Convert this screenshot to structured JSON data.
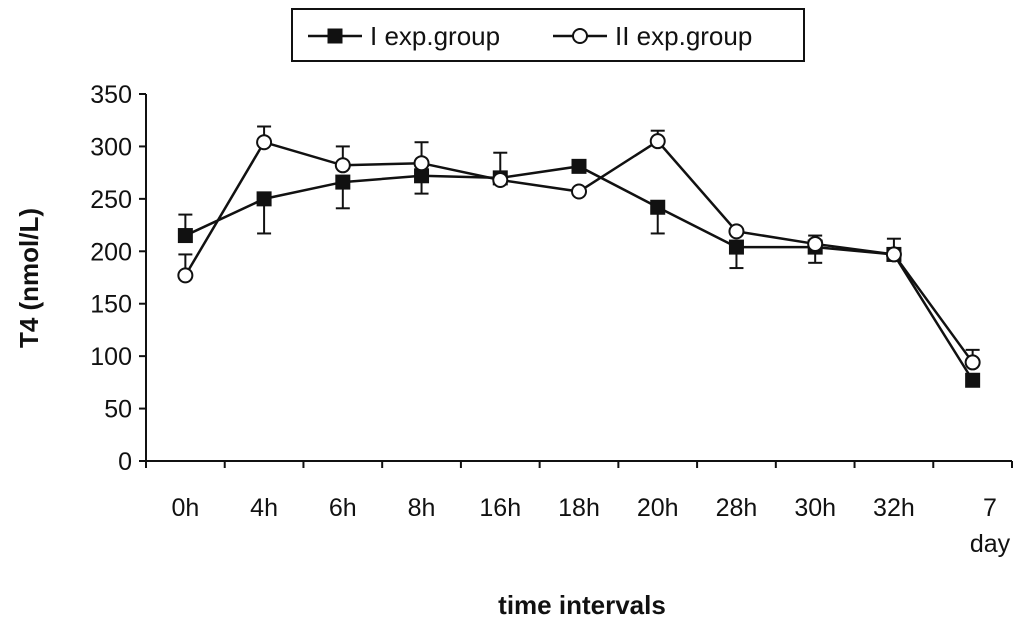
{
  "chart_data": {
    "type": "line",
    "title": "",
    "xlabel": "time intervals",
    "ylabel": "T4 (nmol/L)",
    "ylim": [
      0,
      350
    ],
    "yticks": [
      "0",
      "50",
      "100",
      "150",
      "200",
      "250",
      "300",
      "350"
    ],
    "categories": [
      "0h",
      "4h",
      "6h",
      "8h",
      "16h",
      "18h",
      "20h",
      "28h",
      "30h",
      "32h",
      "7 day"
    ],
    "category_label_lines": [
      [
        "0h"
      ],
      [
        "4h"
      ],
      [
        "6h"
      ],
      [
        "8h"
      ],
      [
        "16h"
      ],
      [
        "18h"
      ],
      [
        "20h"
      ],
      [
        "28h"
      ],
      [
        "30h"
      ],
      [
        "32h"
      ],
      [
        "7",
        "day"
      ]
    ],
    "grid": false,
    "legend_position": "top-center",
    "series": [
      {
        "name": "I exp.group",
        "marker": "filled-square",
        "color": "#111111",
        "values": [
          215,
          250,
          266,
          272,
          270,
          281,
          242,
          204,
          204,
          197,
          77
        ],
        "errors": [
          20,
          33,
          25,
          17,
          24,
          0,
          25,
          20,
          15,
          0,
          0
        ]
      },
      {
        "name": "II exp.group",
        "marker": "open-circle",
        "color": "#111111",
        "values": [
          177,
          304,
          282,
          284,
          268,
          257,
          305,
          219,
          207,
          197,
          94
        ],
        "errors": [
          20,
          15,
          18,
          20,
          0,
          0,
          10,
          0,
          8,
          15,
          12
        ]
      }
    ]
  }
}
